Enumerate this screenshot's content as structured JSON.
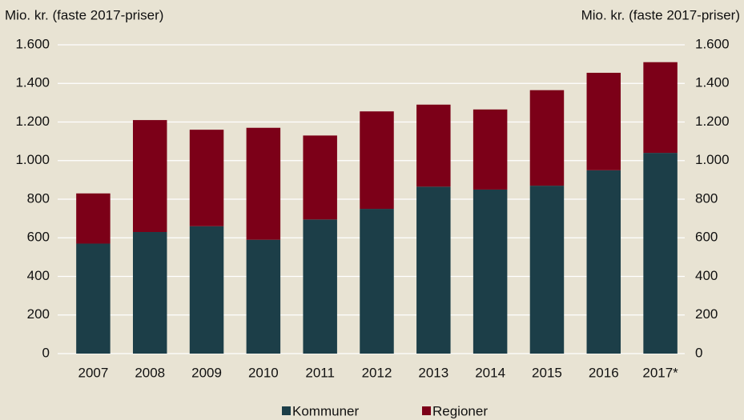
{
  "chart_data": {
    "type": "stacked_bar",
    "y_label": "Mio. kr. (faste 2017-priser)",
    "y2_label": "Mio. kr. (faste 2017-priser)",
    "categories": [
      "2007",
      "2008",
      "2009",
      "2010",
      "2011",
      "2012",
      "2013",
      "2014",
      "2015",
      "2016",
      "2017*"
    ],
    "series": [
      {
        "name": "Kommuner",
        "color": "#1c3e48",
        "values": [
          570,
          630,
          660,
          590,
          695,
          750,
          865,
          850,
          870,
          950,
          1040
        ]
      },
      {
        "name": "Regioner",
        "color": "#7c0018",
        "values": [
          260,
          580,
          500,
          580,
          435,
          505,
          425,
          415,
          495,
          505,
          470
        ]
      }
    ],
    "ylim": [
      0,
      1600
    ],
    "yticks": [
      0,
      200,
      400,
      600,
      800,
      {
        "value": 1000,
        "label": "1.000"
      },
      {
        "value": 1200,
        "label": "1.200"
      },
      {
        "value": 1400,
        "label": "1.400"
      },
      {
        "value": 1600,
        "label": "1.600"
      }
    ],
    "y2lim": [
      0,
      1600
    ],
    "y2ticks": [
      0,
      200,
      400,
      600,
      800,
      {
        "value": 1000,
        "label": "1.000"
      },
      {
        "value": 1200,
        "label": "1.200"
      },
      {
        "value": 1400,
        "label": "1.400"
      },
      {
        "value": 1600,
        "label": "1.600"
      }
    ],
    "grid": true,
    "legend": "bottom"
  }
}
